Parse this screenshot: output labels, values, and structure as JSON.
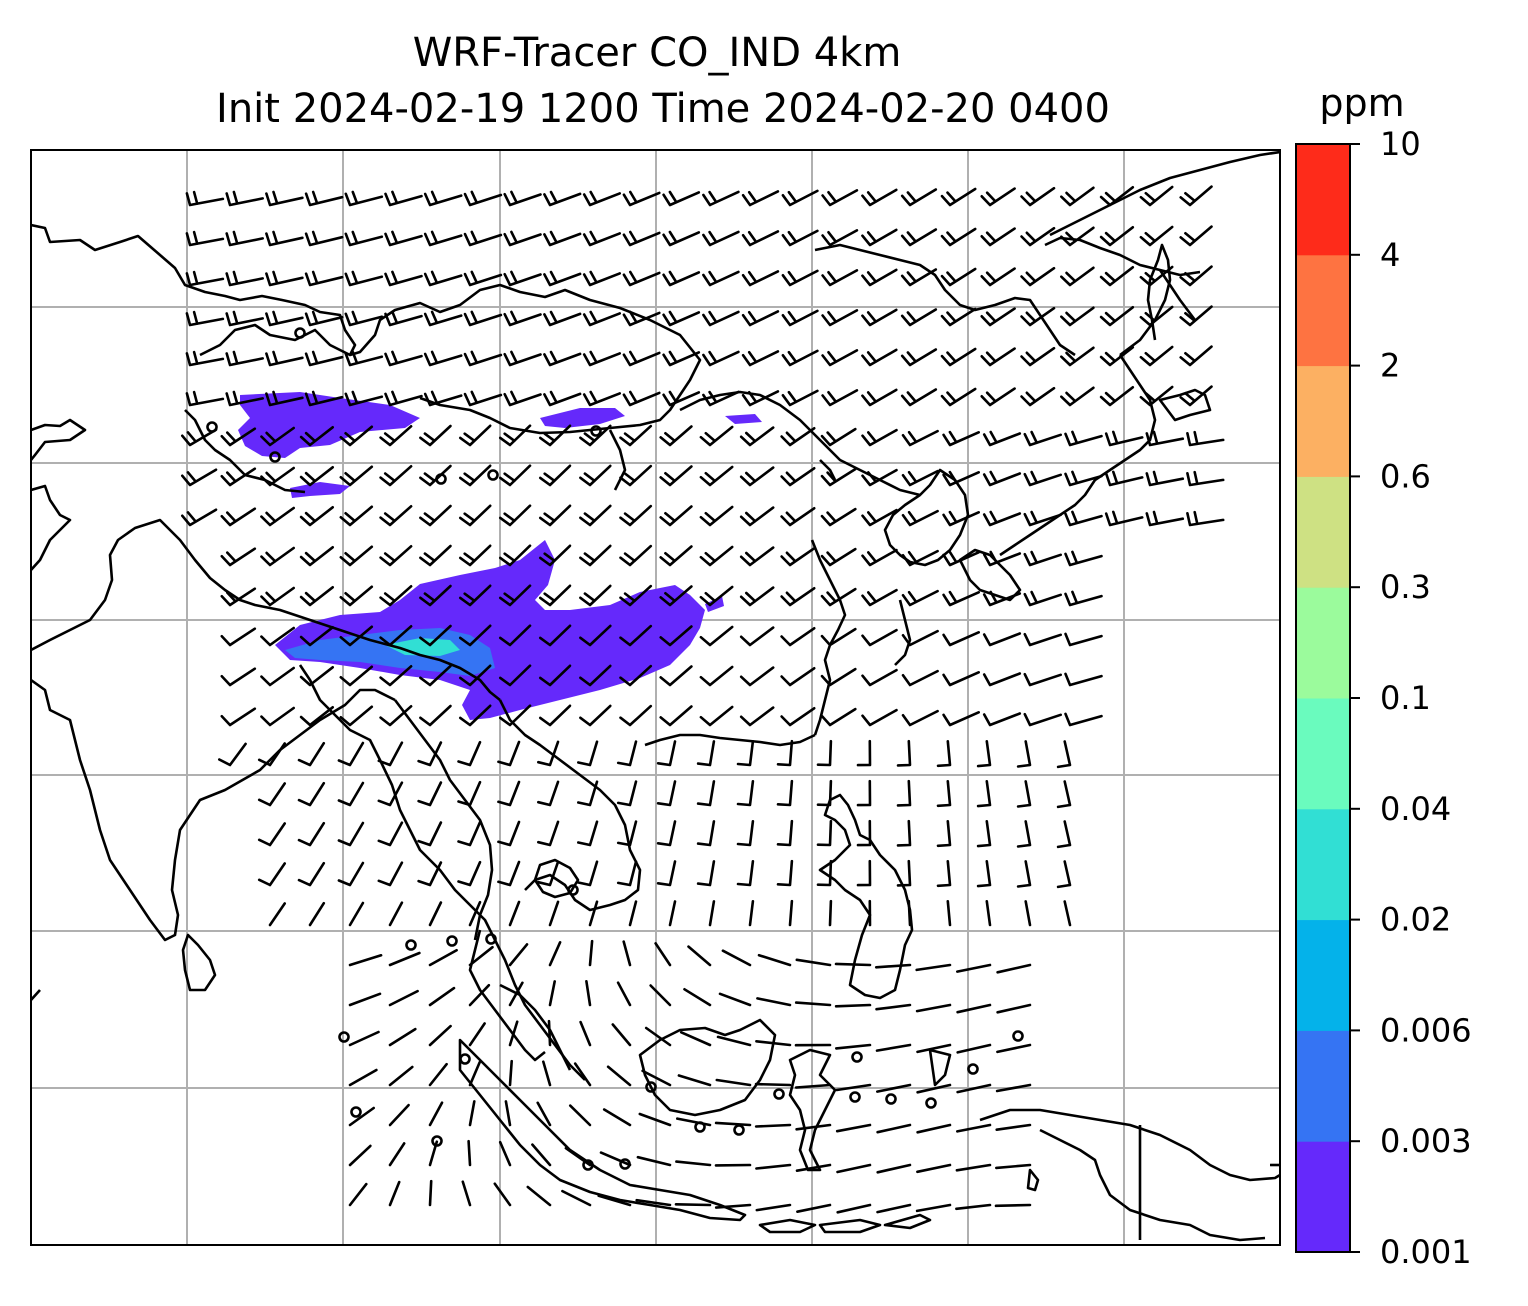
{
  "figure": {
    "title_line1": "WRF-Tracer CO_IND 4km",
    "title_line2": "Init 2024-02-19 1200 Time 2024-02-20 0400"
  },
  "map": {
    "gridlines": true,
    "projection_note": "",
    "wind_barbs": true
  },
  "colorbar": {
    "unit": "ppm",
    "levels": [
      "0.001",
      "0.003",
      "0.006",
      "0.02",
      "0.04",
      "0.1",
      "0.3",
      "0.6",
      "2",
      "4",
      "10"
    ],
    "colors": [
      "#6529fb",
      "#3574f3",
      "#04b2ea",
      "#31dfd4",
      "#6afbbe",
      "#9bfb9c",
      "#cee183",
      "#fcb062",
      "#fe7341",
      "#fe2b1a"
    ]
  },
  "colors": {
    "coastline": "#000000",
    "grid": "#b0b0b0",
    "plume_main": "#6529fb",
    "plume_mid": "#3574f3",
    "plume_core": "#31dfd4"
  }
}
